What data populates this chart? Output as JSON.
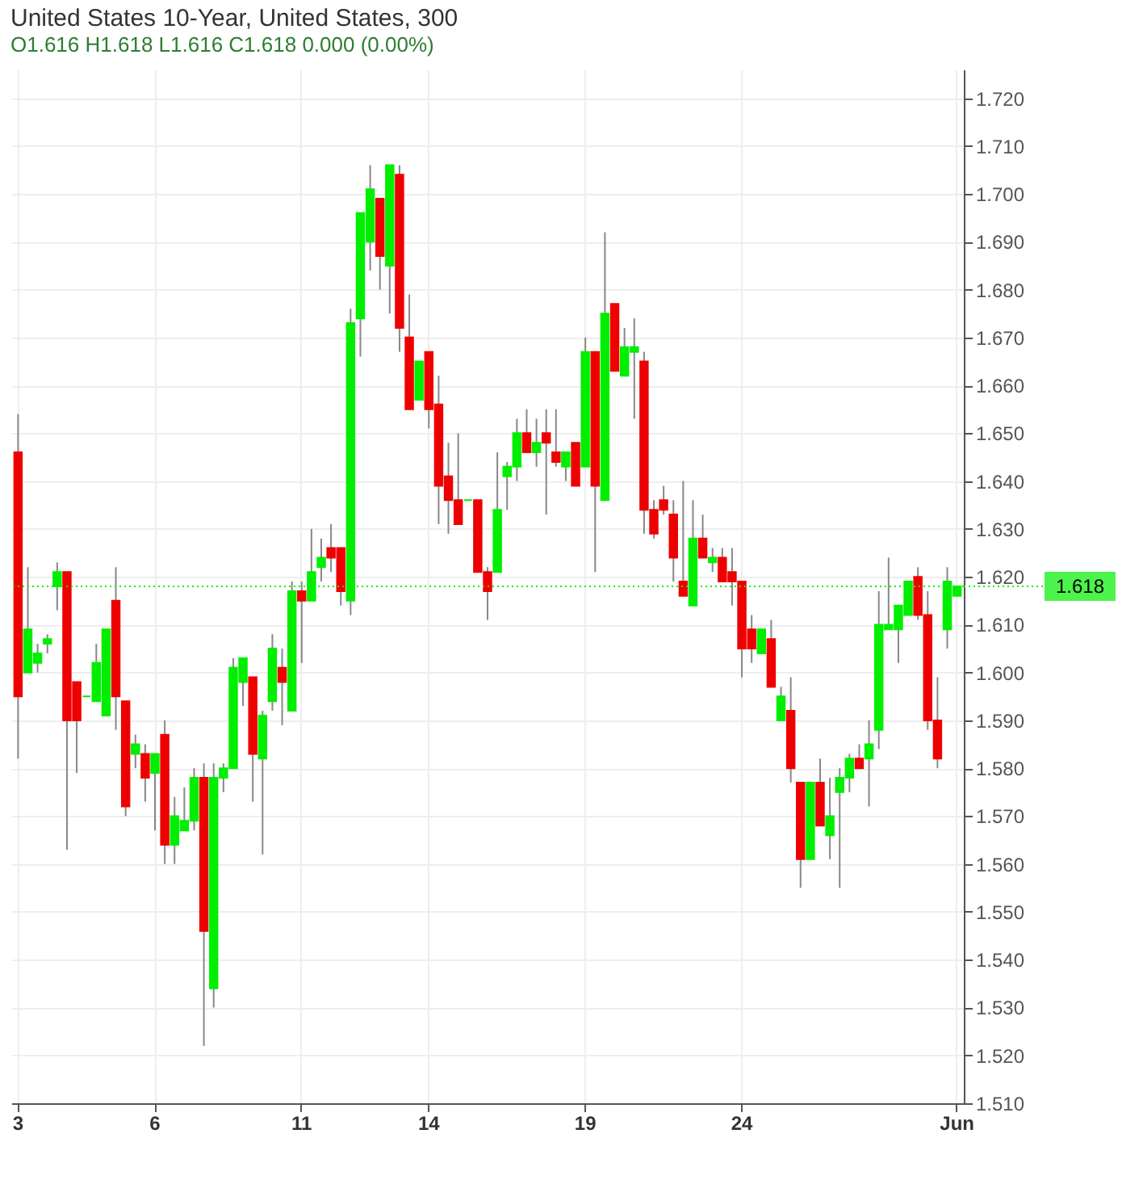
{
  "chart_data": {
    "type": "candlestick",
    "title": "United States 10-Year, United States, 300",
    "subtitle": "O1.616  H1.618  L1.616  C1.618  0.000 (0.00%)",
    "categories": [
      "3",
      null,
      null,
      null,
      null,
      null,
      null,
      null,
      null,
      null,
      null,
      null,
      null,
      null,
      "6",
      null,
      null,
      null,
      null,
      null,
      null,
      null,
      null,
      null,
      null,
      null,
      null,
      null,
      null,
      "11",
      null,
      null,
      null,
      null,
      null,
      null,
      null,
      null,
      null,
      null,
      null,
      null,
      "14",
      null,
      null,
      null,
      null,
      null,
      null,
      null,
      null,
      null,
      null,
      null,
      null,
      null,
      null,
      null,
      "19",
      null,
      null,
      null,
      null,
      null,
      null,
      null,
      null,
      null,
      null,
      null,
      null,
      null,
      null,
      null,
      "24",
      null,
      null,
      null,
      null,
      null,
      null,
      null,
      null,
      null,
      null,
      null,
      null,
      null,
      null,
      null,
      null,
      null,
      null,
      null,
      null,
      null,
      "Jun"
    ],
    "ohlc": [
      [
        1.646,
        1.654,
        1.582,
        1.595
      ],
      [
        1.6,
        1.622,
        1.6,
        1.609
      ],
      [
        1.602,
        1.606,
        1.6,
        1.604
      ],
      [
        1.606,
        1.608,
        1.604,
        1.607
      ],
      [
        1.618,
        1.623,
        1.613,
        1.621
      ],
      [
        1.621,
        1.621,
        1.563,
        1.59
      ],
      [
        1.598,
        1.598,
        1.579,
        1.59
      ],
      [
        1.595,
        1.595,
        1.595,
        1.595
      ],
      [
        1.594,
        1.606,
        1.594,
        1.602
      ],
      [
        1.591,
        1.609,
        1.591,
        1.609
      ],
      [
        1.615,
        1.622,
        1.588,
        1.595
      ],
      [
        1.594,
        1.594,
        1.57,
        1.572
      ],
      [
        1.583,
        1.587,
        1.58,
        1.585
      ],
      [
        1.583,
        1.585,
        1.573,
        1.578
      ],
      [
        1.579,
        1.583,
        1.567,
        1.583
      ],
      [
        1.587,
        1.59,
        1.56,
        1.564
      ],
      [
        1.564,
        1.574,
        1.56,
        1.57
      ],
      [
        1.567,
        1.576,
        1.567,
        1.569
      ],
      [
        1.569,
        1.58,
        1.567,
        1.578
      ],
      [
        1.578,
        1.581,
        1.522,
        1.546
      ],
      [
        1.534,
        1.581,
        1.53,
        1.578
      ],
      [
        1.578,
        1.581,
        1.575,
        1.58
      ],
      [
        1.58,
        1.603,
        1.58,
        1.601
      ],
      [
        1.598,
        1.603,
        1.593,
        1.603
      ],
      [
        1.599,
        1.599,
        1.573,
        1.583
      ],
      [
        1.582,
        1.592,
        1.562,
        1.591
      ],
      [
        1.594,
        1.608,
        1.592,
        1.605
      ],
      [
        1.601,
        1.605,
        1.589,
        1.598
      ],
      [
        1.592,
        1.619,
        1.592,
        1.617
      ],
      [
        1.617,
        1.619,
        1.602,
        1.615
      ],
      [
        1.615,
        1.63,
        1.615,
        1.621
      ],
      [
        1.622,
        1.628,
        1.619,
        1.624
      ],
      [
        1.626,
        1.631,
        1.621,
        1.624
      ],
      [
        1.626,
        1.626,
        1.614,
        1.617
      ],
      [
        1.615,
        1.676,
        1.612,
        1.673
      ],
      [
        1.674,
        1.696,
        1.666,
        1.696
      ],
      [
        1.69,
        1.706,
        1.684,
        1.701
      ],
      [
        1.699,
        1.699,
        1.68,
        1.687
      ],
      [
        1.685,
        1.706,
        1.675,
        1.706
      ],
      [
        1.704,
        1.706,
        1.667,
        1.672
      ],
      [
        1.67,
        1.679,
        1.655,
        1.655
      ],
      [
        1.657,
        1.665,
        1.657,
        1.665
      ],
      [
        1.667,
        1.667,
        1.651,
        1.655
      ],
      [
        1.656,
        1.662,
        1.631,
        1.639
      ],
      [
        1.641,
        1.648,
        1.629,
        1.636
      ],
      [
        1.636,
        1.65,
        1.631,
        1.631
      ],
      [
        1.636,
        1.636,
        1.636,
        1.636
      ],
      [
        1.636,
        1.636,
        1.621,
        1.621
      ],
      [
        1.621,
        1.622,
        1.611,
        1.617
      ],
      [
        1.621,
        1.646,
        1.621,
        1.634
      ],
      [
        1.641,
        1.644,
        1.634,
        1.643
      ],
      [
        1.643,
        1.653,
        1.64,
        1.65
      ],
      [
        1.65,
        1.655,
        1.646,
        1.646
      ],
      [
        1.646,
        1.653,
        1.643,
        1.648
      ],
      [
        1.65,
        1.655,
        1.633,
        1.648
      ],
      [
        1.646,
        1.655,
        1.643,
        1.644
      ],
      [
        1.643,
        1.646,
        1.64,
        1.646
      ],
      [
        1.648,
        1.648,
        1.639,
        1.639
      ],
      [
        1.643,
        1.67,
        1.643,
        1.667
      ],
      [
        1.667,
        1.667,
        1.621,
        1.639
      ],
      [
        1.636,
        1.692,
        1.636,
        1.675
      ],
      [
        1.677,
        1.677,
        1.663,
        1.663
      ],
      [
        1.662,
        1.672,
        1.662,
        1.668
      ],
      [
        1.667,
        1.674,
        1.653,
        1.668
      ],
      [
        1.665,
        1.667,
        1.629,
        1.634
      ],
      [
        1.634,
        1.636,
        1.628,
        1.629
      ],
      [
        1.636,
        1.639,
        1.633,
        1.634
      ],
      [
        1.633,
        1.636,
        1.619,
        1.624
      ],
      [
        1.619,
        1.64,
        1.616,
        1.616
      ],
      [
        1.614,
        1.636,
        1.614,
        1.628
      ],
      [
        1.628,
        1.633,
        1.624,
        1.624
      ],
      [
        1.623,
        1.626,
        1.621,
        1.624
      ],
      [
        1.624,
        1.626,
        1.619,
        1.619
      ],
      [
        1.621,
        1.626,
        1.614,
        1.619
      ],
      [
        1.619,
        1.619,
        1.599,
        1.605
      ],
      [
        1.609,
        1.612,
        1.602,
        1.605
      ],
      [
        1.604,
        1.609,
        1.604,
        1.609
      ],
      [
        1.607,
        1.611,
        1.597,
        1.597
      ],
      [
        1.59,
        1.597,
        1.59,
        1.595
      ],
      [
        1.592,
        1.599,
        1.577,
        1.58
      ],
      [
        1.577,
        1.577,
        1.555,
        1.561
      ],
      [
        1.561,
        1.577,
        1.561,
        1.577
      ],
      [
        1.577,
        1.582,
        1.568,
        1.568
      ],
      [
        1.566,
        1.578,
        1.561,
        1.57
      ],
      [
        1.575,
        1.58,
        1.555,
        1.578
      ],
      [
        1.578,
        1.583,
        1.575,
        1.582
      ],
      [
        1.582,
        1.585,
        1.58,
        1.58
      ],
      [
        1.582,
        1.59,
        1.572,
        1.585
      ],
      [
        1.588,
        1.617,
        1.584,
        1.61
      ],
      [
        1.609,
        1.624,
        1.609,
        1.61
      ],
      [
        1.609,
        1.614,
        1.602,
        1.614
      ],
      [
        1.612,
        1.619,
        1.612,
        1.619
      ],
      [
        1.62,
        1.622,
        1.611,
        1.612
      ],
      [
        1.612,
        1.617,
        1.588,
        1.59
      ],
      [
        1.59,
        1.599,
        1.58,
        1.582
      ],
      [
        1.609,
        1.622,
        1.605,
        1.619
      ],
      [
        1.616,
        1.618,
        1.616,
        1.618
      ]
    ],
    "colors": [
      "#ee0000",
      "#00ee00",
      "#00ee00",
      "#00ee00",
      "#00ee00",
      "#ee0000",
      "#ee0000",
      "#00ee00",
      "#00ee00",
      "#00ee00",
      "#ee0000",
      "#ee0000",
      "#00ee00",
      "#ee0000",
      "#00ee00",
      "#ee0000",
      "#00ee00",
      "#00ee00",
      "#00ee00",
      "#ee0000",
      "#00ee00",
      "#00ee00",
      "#00ee00",
      "#00ee00",
      "#ee0000",
      "#00ee00",
      "#00ee00",
      "#ee0000",
      "#00ee00",
      "#ee0000",
      "#00ee00",
      "#00ee00",
      "#ee0000",
      "#ee0000",
      "#00ee00",
      "#00ee00",
      "#00ee00",
      "#ee0000",
      "#00ee00",
      "#ee0000",
      "#ee0000",
      "#00ee00",
      "#ee0000",
      "#ee0000",
      "#ee0000",
      "#ee0000",
      "#00ee00",
      "#ee0000",
      "#ee0000",
      "#00ee00",
      "#00ee00",
      "#00ee00",
      "#ee0000",
      "#00ee00",
      "#ee0000",
      "#ee0000",
      "#00ee00",
      "#ee0000",
      "#00ee00",
      "#ee0000",
      "#00ee00",
      "#ee0000",
      "#00ee00",
      "#00ee00",
      "#ee0000",
      "#ee0000",
      "#ee0000",
      "#ee0000",
      "#ee0000",
      "#00ee00",
      "#ee0000",
      "#00ee00",
      "#ee0000",
      "#ee0000",
      "#ee0000",
      "#ee0000",
      "#00ee00",
      "#ee0000",
      "#00ee00",
      "#ee0000",
      "#ee0000",
      "#00ee00",
      "#ee0000",
      "#00ee00",
      "#00ee00",
      "#00ee00",
      "#ee0000",
      "#00ee00",
      "#00ee00",
      "#00ee00",
      "#00ee00",
      "#00ee00",
      "#ee0000",
      "#ee0000",
      "#ee0000",
      "#00ee00",
      "#00ee00"
    ],
    "ylim": [
      1.51,
      1.726
    ],
    "yticks": [
      {
        "value": 1.51,
        "label": "1.510"
      },
      {
        "value": 1.52,
        "label": "1.520"
      },
      {
        "value": 1.53,
        "label": "1.530"
      },
      {
        "value": 1.54,
        "label": "1.540"
      },
      {
        "value": 1.55,
        "label": "1.550"
      },
      {
        "value": 1.56,
        "label": "1.560"
      },
      {
        "value": 1.57,
        "label": "1.570"
      },
      {
        "value": 1.58,
        "label": "1.580"
      },
      {
        "value": 1.59,
        "label": "1.590"
      },
      {
        "value": 1.6,
        "label": "1.600"
      },
      {
        "value": 1.61,
        "label": "1.610"
      },
      {
        "value": 1.62,
        "label": "1.620"
      },
      {
        "value": 1.63,
        "label": "1.630"
      },
      {
        "value": 1.64,
        "label": "1.640"
      },
      {
        "value": 1.65,
        "label": "1.650"
      },
      {
        "value": 1.66,
        "label": "1.660"
      },
      {
        "value": 1.67,
        "label": "1.670"
      },
      {
        "value": 1.68,
        "label": "1.680"
      },
      {
        "value": 1.69,
        "label": "1.690"
      },
      {
        "value": 1.7,
        "label": "1.700"
      },
      {
        "value": 1.71,
        "label": "1.710"
      },
      {
        "value": 1.72,
        "label": "1.720"
      }
    ],
    "ref_lines": [
      {
        "axis": "y",
        "value": 1.618,
        "label": "1.618",
        "color": "#00ee00",
        "line_style": "dotted"
      }
    ],
    "grid": true
  }
}
